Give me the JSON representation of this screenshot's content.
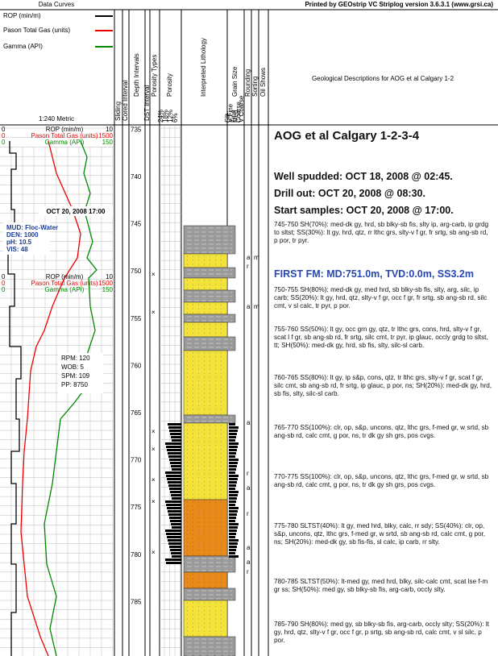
{
  "header": {
    "printed_by": "Printed by GEOstrip VC Striplog version 3.6.3.1 (www.grsi.ca)"
  },
  "legend": {
    "title": "Data Curves",
    "items": [
      "ROP (min/m)",
      "Pason Total Gas (units)",
      "Gamma (API)"
    ],
    "scale": "1:240 Metric"
  },
  "columns": [
    "Sliding",
    "Cored Interval",
    "Depth Intervals",
    "DST Interval",
    "Porosity Types",
    "Porosity",
    "Interpreted Lithology",
    "Grain Size",
    "Rounding",
    "Sorting",
    "Oil Shows",
    "Geological Descriptions for AOG et al Calgary 1-2"
  ],
  "porosity_scale": [
    "24%",
    "18%",
    "12%",
    "6%"
  ],
  "grain_scale": [
    "Silt",
    "V Fine",
    "Fine",
    "Med",
    "Coarse",
    "V Coarse"
  ],
  "curve_scales": [
    {
      "rop": [
        "0",
        "ROP (min/m)",
        "10"
      ],
      "gas": [
        "0",
        "Pason Total Gas (units)",
        "1500"
      ],
      "gamma": [
        "0",
        "Gamma (API)",
        "150"
      ]
    },
    {
      "rop": [
        "0",
        "ROP (min/m)",
        "10"
      ],
      "gas": [
        "0",
        "Pason Total Gas (units)",
        "1500"
      ],
      "gamma": [
        "0",
        "Gamma (API)",
        "150"
      ]
    }
  ],
  "depths": [
    "735",
    "740",
    "745",
    "750",
    "755",
    "760",
    "765",
    "770",
    "775",
    "780",
    "785"
  ],
  "annotations": {
    "date": "OCT 20, 2008 17:00",
    "mud": [
      "MUD: Floc-Water",
      "DEN:  1000",
      "pH:   10.5",
      "VIS:  48"
    ],
    "drilling": [
      "RPM: 120",
      "WOB: 5",
      "SPM: 109",
      "PP: 8750"
    ]
  },
  "shows": [
    "a",
    "m",
    "r",
    "a",
    "m",
    "a",
    "r",
    "a",
    "r",
    "a",
    "a",
    "r"
  ],
  "descriptions": {
    "well": "AOG et al Calgary 1-2-3-4",
    "spudded": "Well spudded: OCT 18, 2008 @ 02:45.",
    "drill_out": "Drill out: OCT 20, 2008 @ 08:30.",
    "start_samples": "Start samples: OCT 20, 2008 @ 17:00.",
    "first_fm": "FIRST FM: MD:751.0m, TVD:0.0m, SS3.2m",
    "intervals": [
      "745-750 SH(70%): med-dk gy, hrd, sb blky-sb fis, slty ip, arg-carb, ip grdg to sltst; SS(30%): lt gy, hrd, qtz, rr lthc grs, slty-v f gr, fr srtg, sb ang-sb rd, p por, tr pyr.",
      "750-755 SH(80%): med-dk gy, med hrd, sb blky-sb fis, slty, arg, silc, ip carb; SS(20%): lt gy, hrd, qtz, slty-v f gr, occ f gr, fr srtg, sb ang-sb rd, silc cmt, v sl calc, tr pyr, p por.",
      "755-760 SS(50%): lt gy, occ grn gy, qtz, tr lthc grs, cons, hrd, slty-v f gr, scat l f gr, sb ang-sb rd, fr srtg, silc cmt, tr pyr, ip glauc, occly grdg to sltst, tt; SH(50%): med-dk gy, hrd, sb fis, slty, silc-sl carb.",
      "760-765 SS(80%): lt gy, ip s&p, cons, qtz, tr lthc grs, slty-v f gr, scat f gr, silc cmt, sb ang-sb rd, fr srtg, ip glauc, p por, ns; SH(20%): med-dk gy, hrd, sb fis, slty, silc-sl carb.",
      "765-770 SS(100%): clr, op, s&p, uncons, qtz, lthc grs, f-med gr, w srtd, sb ang-sb rd, calc cmt, g por, ns, tr dk gy sh grs, pos cvgs.",
      "770-775 SS(100%): clr, op, s&p, uncons, qtz, lthc grs, f-med gr, w srtd, sb ang-sb rd, calc cmt, g por, ns, tr dk gy sh grs, pos cvgs.",
      "775-780 SLTST(40%): lt gy, med hrd, blky, calc, rr sdy; SS(40%): clr, op, s&p, uncons, qtz, lthc grs, f-med gr, w srtd, sb ang-sb rd, calc cmt, g por, ns; SH(20%): med-dk gy, sb fis-fis, sl calc, ip carb, rr slty.",
      "780-785 SLTST(50%): lt-med gy, med hrd, blky, silc-calc cmt, scat lse f-m gr ss; SH(50%): med gy, sb blky-sb fis, arg-carb, occly slty.",
      "785-790 SH(80%): med gy, sb blky-sb fis, arg-carb, occly slty; SS(20%): lt gy, hrd, qtz, slty-v f gr, occ f gr, p srtg, sb ang-sb rd, calc cmt, v sl silc, p por."
    ]
  }
}
